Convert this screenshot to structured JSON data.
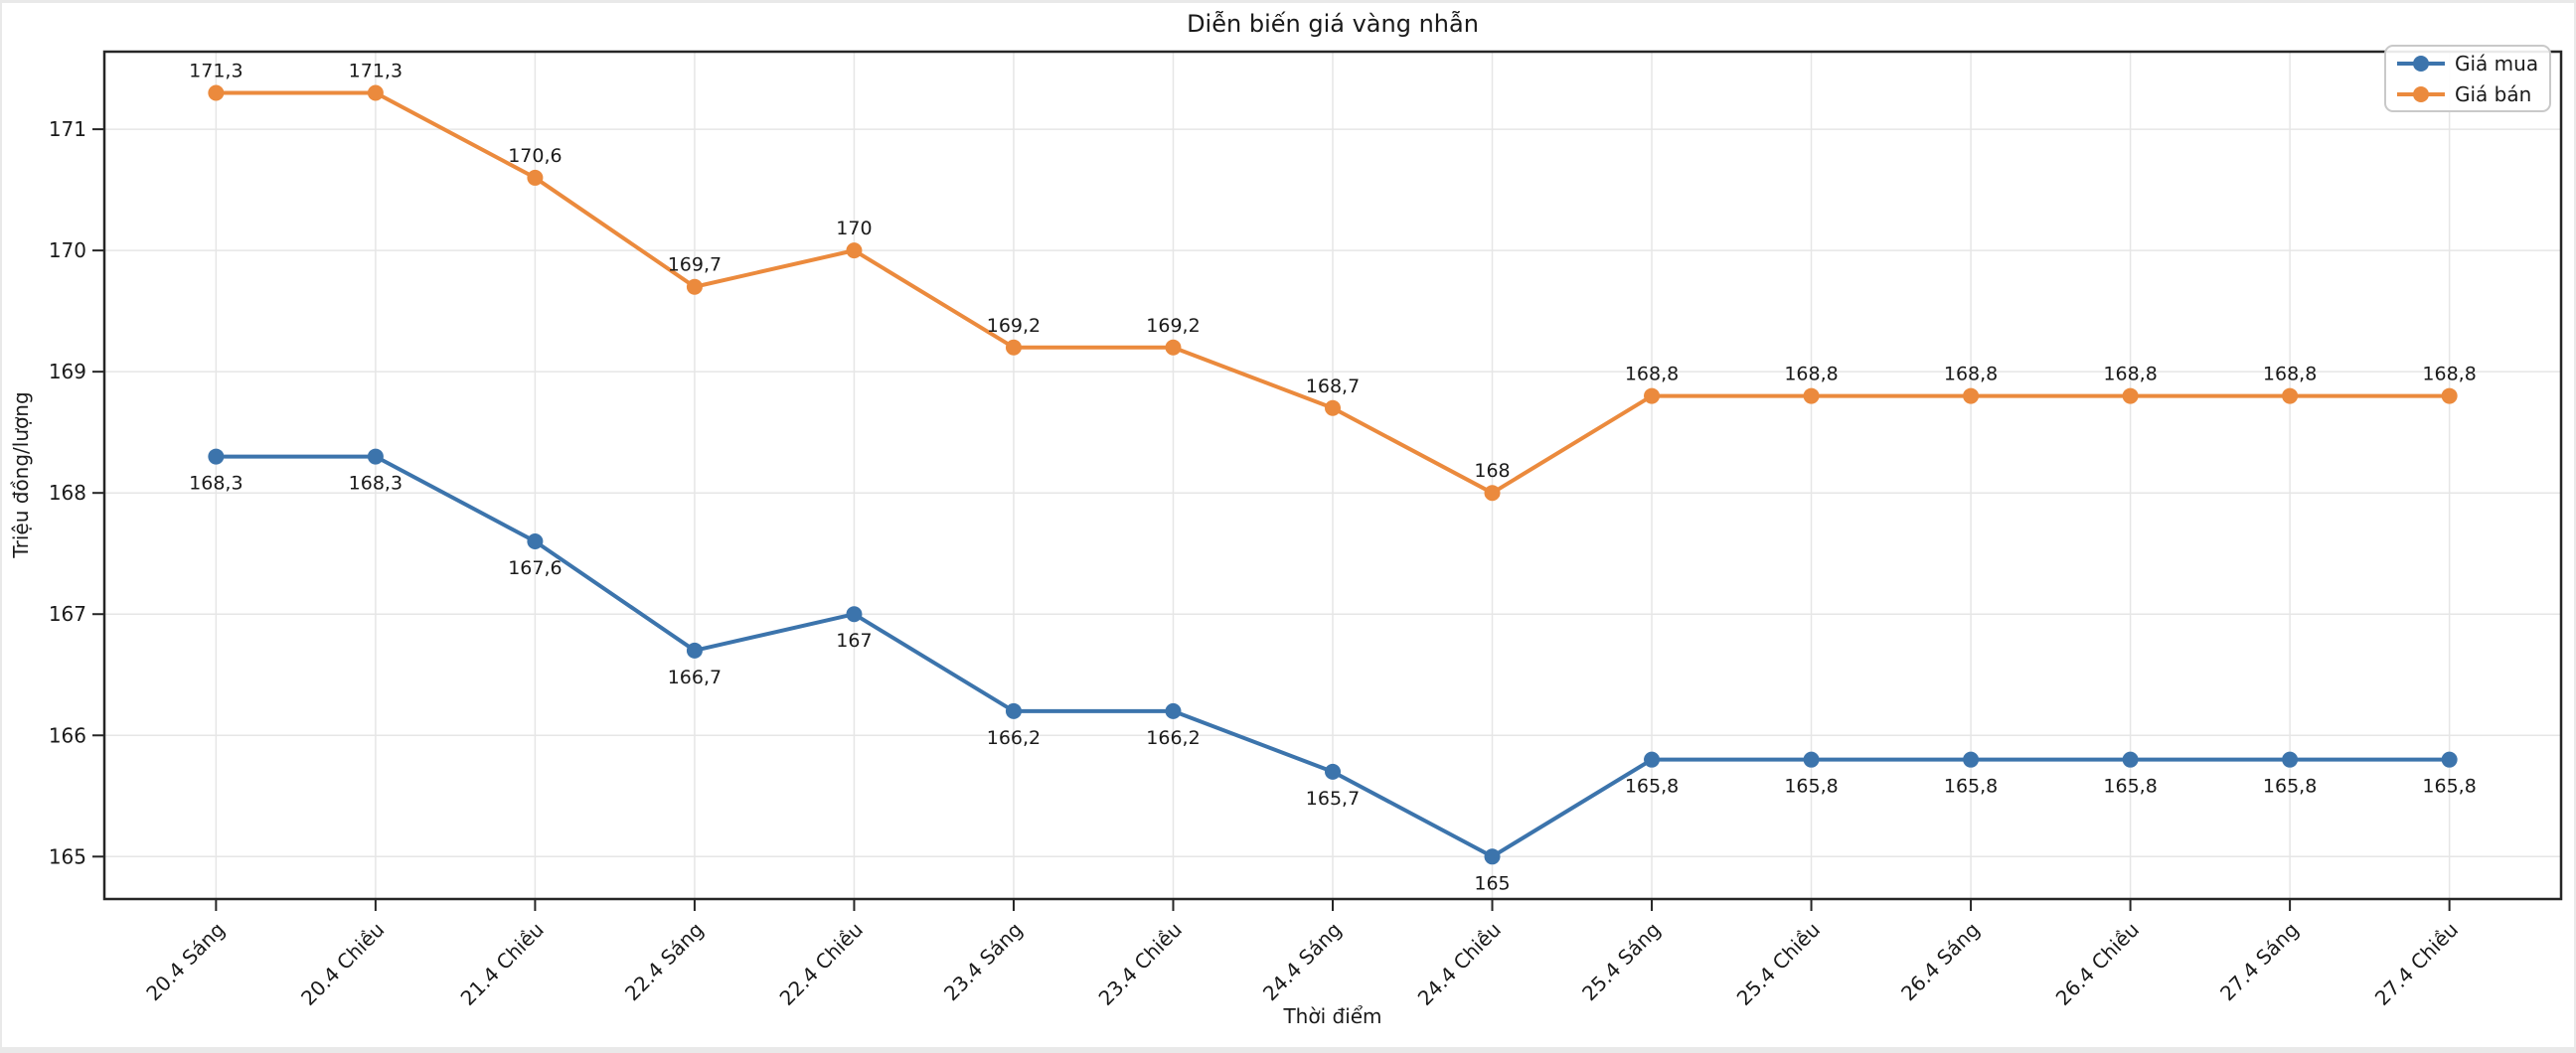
{
  "page": {
    "background_color": "#e9e9e9",
    "card_color": "#ffffff"
  },
  "chart_data": {
    "type": "line",
    "title": "Diễn biến giá vàng nhẫn",
    "xlabel": "Thời điểm",
    "ylabel": "Triệu đồng/lượng",
    "categories": [
      "20.4 Sáng",
      "20.4 Chiều",
      "21.4 Chiều",
      "22.4 Sáng",
      "22.4 Chiều",
      "23.4 Sáng",
      "23.4 Chiều",
      "24.4 Sáng",
      "24.4 Chiều",
      "25.4 Sáng",
      "25.4 Chiều",
      "26.4 Sáng",
      "26.4 Chiều",
      "27.4 Sáng",
      "27.4 Chiều"
    ],
    "series": [
      {
        "name": "Giá mua",
        "color": "#3c74ac",
        "values": [
          168.3,
          168.3,
          167.6,
          166.7,
          167,
          166.2,
          166.2,
          165.7,
          165,
          165.8,
          165.8,
          165.8,
          165.8,
          165.8,
          165.8
        ],
        "point_labels": [
          "168,3",
          "168,3",
          "167,6",
          "166,7",
          "167",
          "166,2",
          "166,2",
          "165,7",
          "165",
          "165,8",
          "165,8",
          "165,8",
          "165,8",
          "165,8",
          "165,8"
        ],
        "label_side": "below"
      },
      {
        "name": "Giá bán",
        "color": "#eb8a3d",
        "values": [
          171.3,
          171.3,
          170.6,
          169.7,
          170,
          169.2,
          169.2,
          168.7,
          168,
          168.8,
          168.8,
          168.8,
          168.8,
          168.8,
          168.8
        ],
        "point_labels": [
          "171,3",
          "171,3",
          "170,6",
          "169,7",
          "170",
          "169,2",
          "169,2",
          "168,7",
          "168",
          "168,8",
          "168,8",
          "168,8",
          "168,8",
          "168,8",
          "168,8"
        ],
        "label_side": "above"
      }
    ],
    "yticks": [
      165,
      166,
      167,
      168,
      169,
      170,
      171
    ],
    "ylim": [
      164.65,
      171.64
    ],
    "grid": true,
    "grid_color": "#e6e6e6",
    "spine_color": "#262626",
    "legend_position": "top-right",
    "x_tick_rotation_deg": 45
  }
}
